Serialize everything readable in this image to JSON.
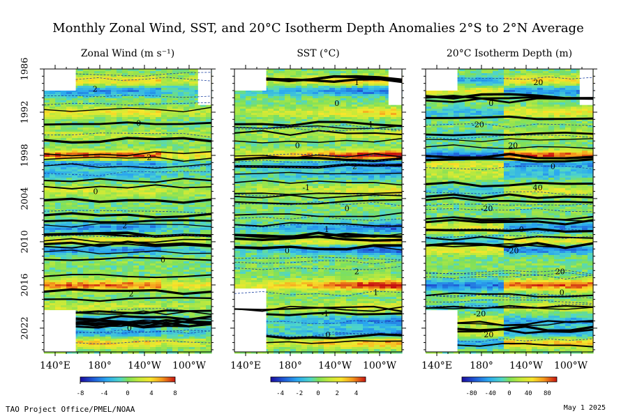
{
  "figure": {
    "title": "Monthly Zonal Wind, SST, and 20°C Isotherm Depth Anomalies  2°S to 2°N Average",
    "credit": "TAO Project Office/PMEL/NOAA",
    "date": "May  1 2025"
  },
  "chart_data": [
    {
      "type": "heatmap",
      "title": "Zonal Wind (m s⁻¹)",
      "x_ticks": [
        "140°E",
        "180°",
        "140°W",
        "100°W"
      ],
      "y_ticks": [
        "1986",
        "1992",
        "1998",
        "2004",
        "2010",
        "2016",
        "2022"
      ],
      "xlim": [
        130,
        280
      ],
      "ylim": [
        1986,
        2025.3
      ],
      "colorbar": {
        "ticks": [
          "-8",
          "-4",
          "0",
          "4",
          "8"
        ],
        "range": [
          -8,
          8
        ]
      },
      "contour_labels": [
        "2",
        "0",
        "-2",
        "0",
        "2",
        "0",
        "2",
        "0"
      ],
      "colors": {
        "missing": "#ffffff",
        "zero": "#7fe05a"
      }
    },
    {
      "type": "heatmap",
      "title": "SST (°C)",
      "x_ticks": [
        "140°E",
        "180°",
        "140°W",
        "100°W"
      ],
      "y_ticks": [
        "1986",
        "1992",
        "1998",
        "2004",
        "2010",
        "2016",
        "2022"
      ],
      "xlim": [
        130,
        280
      ],
      "ylim": [
        1986,
        2025.3
      ],
      "colorbar": {
        "ticks": [
          "-4",
          "-2",
          "0",
          "2",
          "4"
        ],
        "range": [
          -5,
          5
        ]
      },
      "contour_labels": [
        "1",
        "0",
        "1",
        "0",
        "2",
        "-1",
        "0",
        "1",
        "0",
        "2",
        "1",
        "-1",
        "0"
      ],
      "colors": {
        "missing": "#ffffff",
        "zero": "#7fe05a"
      }
    },
    {
      "type": "heatmap",
      "title": "20°C Isotherm Depth (m)",
      "x_ticks": [
        "140°E",
        "180°",
        "140°W",
        "100°W"
      ],
      "y_ticks": [
        "1986",
        "1992",
        "1998",
        "2004",
        "2010",
        "2016",
        "2022"
      ],
      "xlim": [
        130,
        280
      ],
      "ylim": [
        1986,
        2025.3
      ],
      "colorbar": {
        "ticks": [
          "-80",
          "-40",
          "0",
          "40",
          "80"
        ],
        "range": [
          -100,
          100
        ]
      },
      "contour_labels": [
        "20",
        "0",
        "-20",
        "20",
        "0",
        "40",
        "-20",
        "0",
        "-20",
        "20",
        "0",
        "-20",
        "20"
      ],
      "colors": {
        "missing": "#ffffff",
        "zero": "#7fe05a"
      }
    }
  ]
}
